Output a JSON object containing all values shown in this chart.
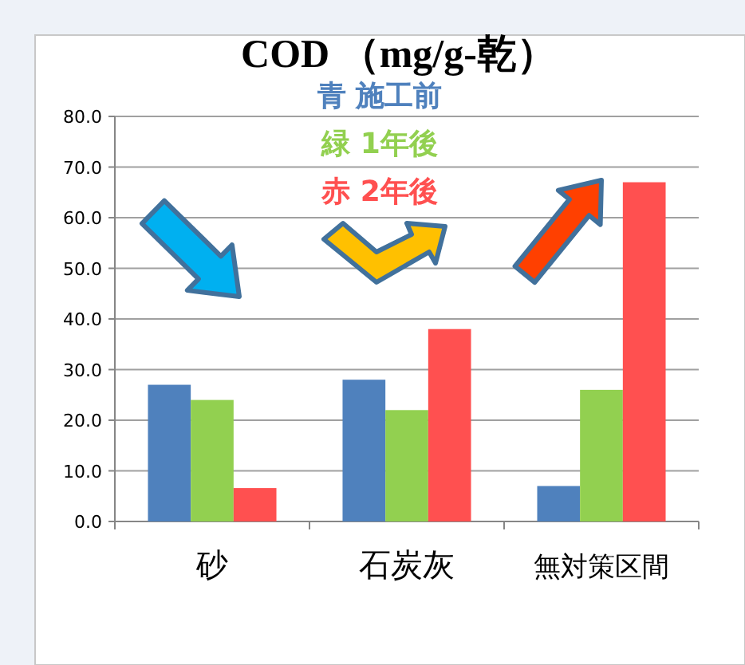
{
  "chart_data": {
    "type": "bar",
    "title": "COD （mg/g-乾）",
    "categories": [
      "砂",
      "石炭灰",
      "無対策区間"
    ],
    "series": [
      {
        "name": "青 施工前",
        "color": "#4f81bd",
        "values": [
          27,
          28,
          7
        ]
      },
      {
        "name": "緑 1年後",
        "color": "#92d050",
        "values": [
          24,
          22,
          26
        ]
      },
      {
        "name": "赤 2年後",
        "color": "#ff5050",
        "values": [
          6.6,
          38,
          67
        ]
      }
    ],
    "ylim": [
      0,
      80
    ],
    "yticks": [
      {
        "value": 0,
        "label": "0.0"
      },
      {
        "value": 10,
        "label": "10.0"
      },
      {
        "value": 20,
        "label": "20.0"
      },
      {
        "value": 30,
        "label": "30.0"
      },
      {
        "value": 40,
        "label": "40.0"
      },
      {
        "value": 50,
        "label": "50.0"
      },
      {
        "value": 60,
        "label": "60.0"
      },
      {
        "value": 70,
        "label": "70.0"
      },
      {
        "value": 80,
        "label": "80.0"
      }
    ],
    "grid": "y",
    "legend": "top"
  }
}
